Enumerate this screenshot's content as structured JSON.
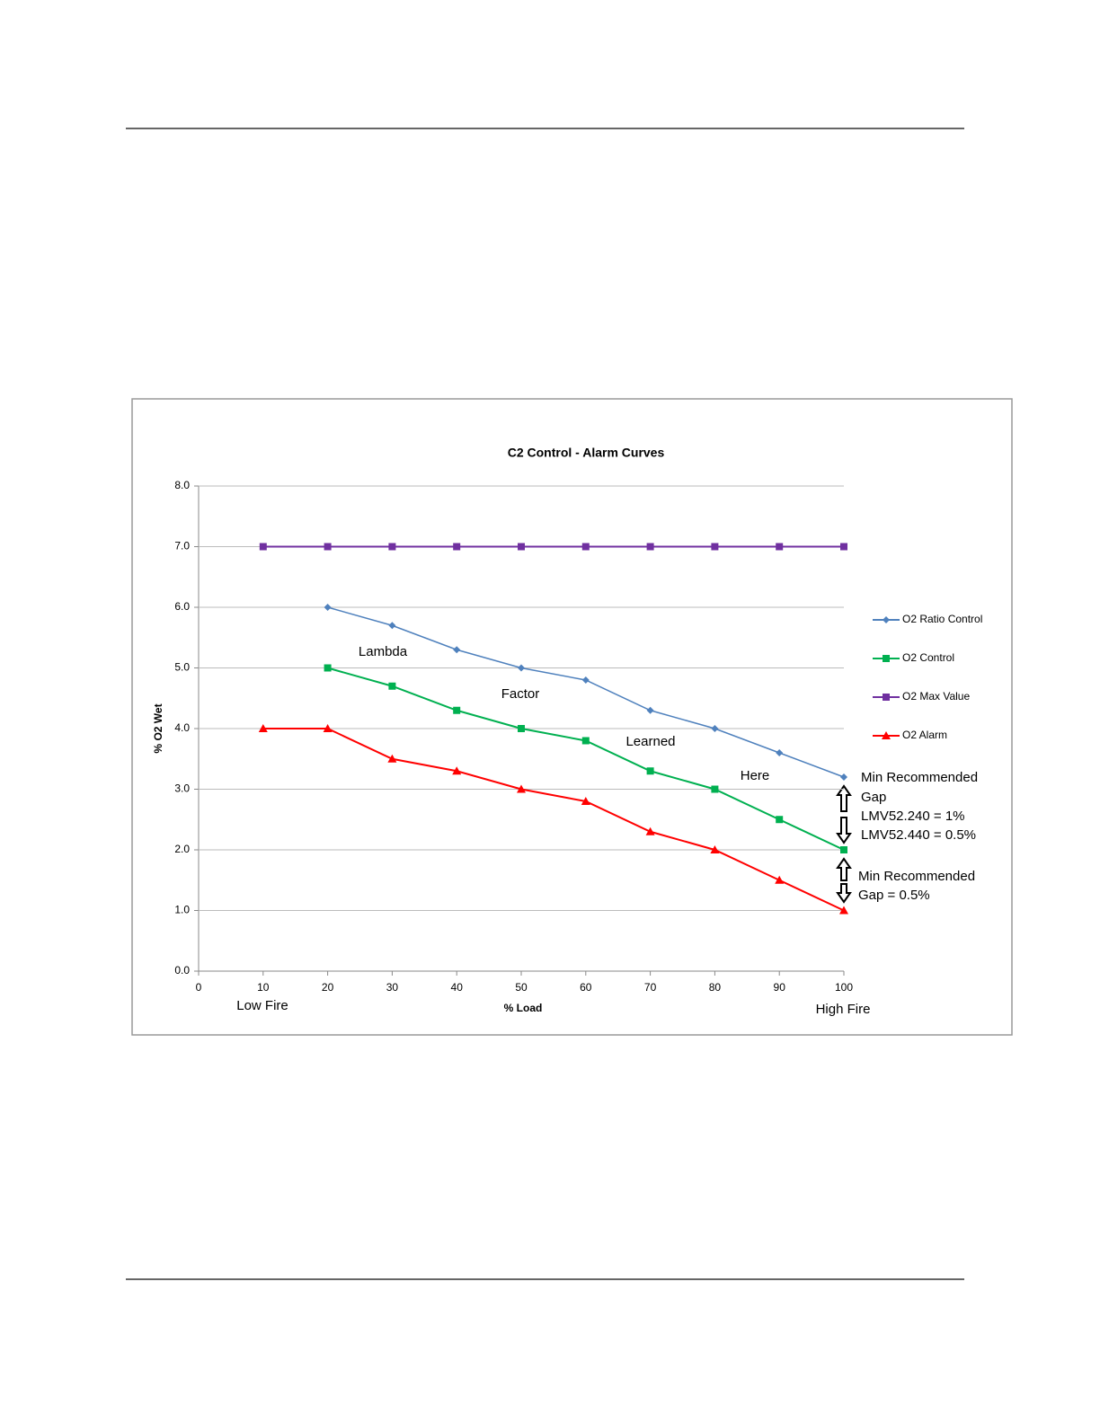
{
  "chart_data": {
    "type": "line",
    "title": "C2 Control - Alarm Curves",
    "x_label": "% Load",
    "y_label": "% O2 Wet",
    "x": [
      10,
      20,
      30,
      40,
      50,
      60,
      70,
      80,
      90,
      100
    ],
    "series": [
      {
        "name": "O2 Ratio Control",
        "color": "#4f81bd",
        "marker": "diamond",
        "values": [
          null,
          6.0,
          5.7,
          5.3,
          5.0,
          4.8,
          4.3,
          4.0,
          3.6,
          3.2
        ]
      },
      {
        "name": "O2 Control",
        "color": "#00b050",
        "marker": "square",
        "values": [
          null,
          5.0,
          4.7,
          4.3,
          4.0,
          3.8,
          3.3,
          3.0,
          2.5,
          2.0
        ]
      },
      {
        "name": "O2 Max Value",
        "color": "#7030a0",
        "marker": "square",
        "values": [
          7.0,
          7.0,
          7.0,
          7.0,
          7.0,
          7.0,
          7.0,
          7.0,
          7.0,
          7.0
        ]
      },
      {
        "name": "O2 Alarm",
        "color": "#ff0000",
        "marker": "triangle",
        "values": [
          4.0,
          4.0,
          3.5,
          3.3,
          3.0,
          2.8,
          2.3,
          2.0,
          1.5,
          1.0
        ]
      }
    ],
    "xlim": [
      0,
      100
    ],
    "xticks": [
      0,
      10,
      20,
      30,
      40,
      50,
      60,
      70,
      80,
      90,
      100
    ],
    "ylim": [
      0,
      8
    ],
    "yticks": [
      {
        "value": 0,
        "label": "0.0"
      },
      {
        "value": 1,
        "label": "1.0"
      },
      {
        "value": 2,
        "label": "2.0"
      },
      {
        "value": 3,
        "label": "3.0"
      },
      {
        "value": 4,
        "label": "4.0"
      },
      {
        "value": 5,
        "label": "5.0"
      },
      {
        "value": 6,
        "label": "6.0"
      },
      {
        "value": 7,
        "label": "7.0"
      },
      {
        "value": 8,
        "label": "8.0"
      }
    ],
    "grid": true,
    "legend": "right",
    "annotations": [
      "Lambda",
      "Factor",
      "Learned",
      "Here",
      "Low Fire",
      "High Fire",
      "Min Recommended",
      "Gap",
      "LMV52.240 = 1%",
      "LMV52.440 = 0.5%",
      "Min Recommended",
      "Gap = 0.5%"
    ]
  }
}
